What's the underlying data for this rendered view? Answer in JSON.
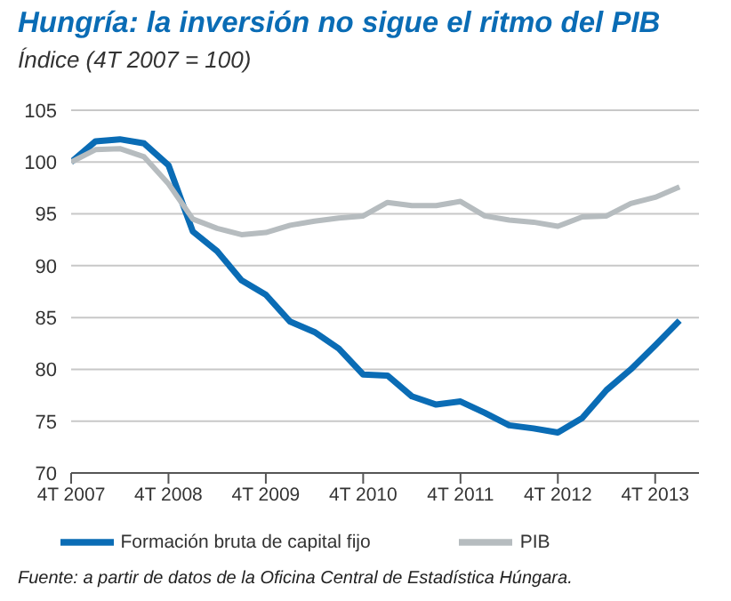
{
  "chart_data": {
    "type": "line",
    "title": "Hungría: la inversión no sigue el ritmo del PIB",
    "subtitle": "Índice (4T 2007 = 100)",
    "categories": [
      "4T 2007",
      null,
      null,
      null,
      "4T 2008",
      null,
      null,
      null,
      "4T 2009",
      null,
      null,
      null,
      "4T 2010",
      null,
      null,
      null,
      "4T 2011",
      null,
      null,
      null,
      "4T 2012",
      null,
      null,
      null,
      "4T 2013",
      null
    ],
    "series": [
      {
        "name": "Formación bruta de capital fijo",
        "color": "#0a6cb5",
        "values": [
          100,
          102,
          102.2,
          101.8,
          99.7,
          93.3,
          91.4,
          88.6,
          87.2,
          84.6,
          83.6,
          82.0,
          79.5,
          79.4,
          77.4,
          76.6,
          76.9,
          75.8,
          74.6,
          74.3,
          73.9,
          75.3,
          78.0,
          80.0,
          82.3,
          84.7
        ]
      },
      {
        "name": "PIB",
        "color": "#b6bcbf",
        "values": [
          100,
          101.2,
          101.3,
          100.5,
          97.9,
          94.5,
          93.6,
          93.0,
          93.2,
          93.9,
          94.3,
          94.6,
          94.8,
          96.1,
          95.8,
          95.8,
          96.2,
          94.8,
          94.4,
          94.2,
          93.8,
          94.7,
          94.8,
          96.0,
          96.6,
          97.6
        ]
      }
    ],
    "ylim": [
      70,
      105
    ],
    "yticks": [
      70,
      75,
      80,
      85,
      90,
      95,
      100,
      105
    ],
    "grid": "y",
    "legend": "bottom",
    "marker": "none",
    "line_style": "solid",
    "annotations": [
      "Fuente: a partir de datos de la Oficina Central de Estadística Húngara."
    ]
  }
}
